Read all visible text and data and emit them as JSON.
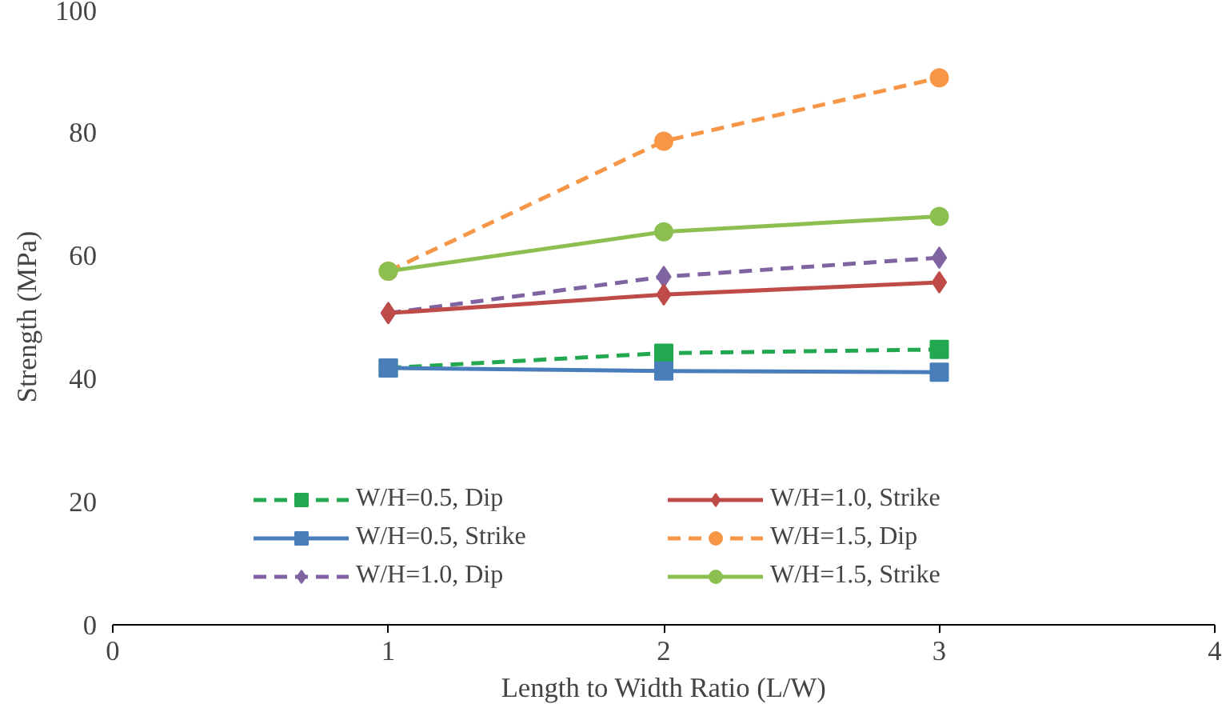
{
  "chart_data": {
    "type": "line",
    "xlabel": "Length to Width Ratio (L/W)",
    "ylabel": "Strength (MPa)",
    "x": [
      1,
      2,
      3
    ],
    "xlim": [
      0,
      4
    ],
    "xticks": [
      0,
      1,
      2,
      3,
      4
    ],
    "ylim": [
      0,
      100
    ],
    "yticks": [
      0,
      20,
      40,
      60,
      80,
      100
    ],
    "grid": false,
    "legend": "bottom",
    "series": [
      {
        "name": "W/H=0.5, Dip",
        "color": "#22a94f",
        "values": [
          41.7,
          44.1,
          44.7
        ],
        "marker": "square",
        "line_style": "dashed"
      },
      {
        "name": "W/H=0.5, Strike",
        "color": "#4a7ebb",
        "values": [
          41.7,
          41.2,
          41.0
        ],
        "marker": "square",
        "line_style": "solid"
      },
      {
        "name": "W/H=1.0, Dip",
        "color": "#8064a2",
        "values": [
          50.6,
          56.5,
          59.6
        ],
        "marker": "diamond",
        "line_style": "dashed"
      },
      {
        "name": "W/H=1.0, Strike",
        "color": "#be4b48",
        "values": [
          50.6,
          53.6,
          55.6
        ],
        "marker": "diamond",
        "line_style": "solid"
      },
      {
        "name": "W/H=1.5, Dip",
        "color": "#f79646",
        "values": [
          57.4,
          78.5,
          88.8
        ],
        "marker": "circle",
        "line_style": "dashed"
      },
      {
        "name": "W/H=1.5, Strike",
        "color": "#8cbf4f",
        "values": [
          57.4,
          63.8,
          66.3
        ],
        "marker": "circle",
        "line_style": "solid"
      }
    ]
  }
}
